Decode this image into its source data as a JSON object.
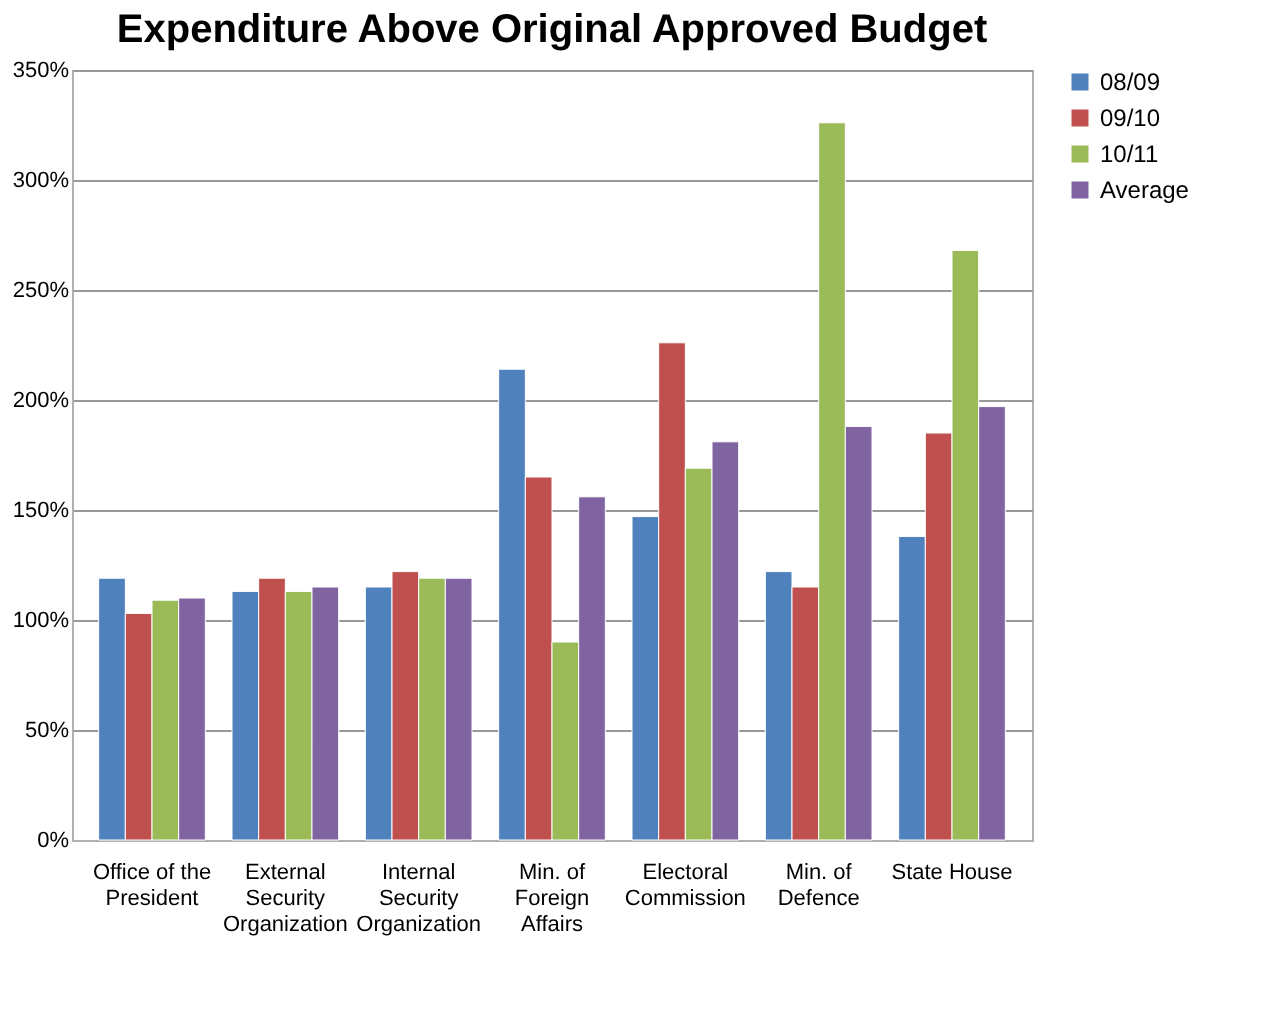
{
  "chart_data": {
    "type": "bar",
    "title": "Expenditure Above Original Approved Budget",
    "categories": [
      "Office of the President",
      "External Security Organization",
      "Internal Security Organization",
      "Min. of Foreign Affairs",
      "Electoral Commission",
      "Min. of Defence",
      "State House"
    ],
    "series": [
      {
        "name": "08/09",
        "color": "#4f81bd",
        "values": [
          119,
          113,
          115,
          214,
          147,
          122,
          138
        ]
      },
      {
        "name": "09/10",
        "color": "#c0504d",
        "values": [
          103,
          119,
          122,
          165,
          226,
          115,
          185
        ]
      },
      {
        "name": "10/11",
        "color": "#9bbb59",
        "values": [
          109,
          113,
          119,
          90,
          169,
          326,
          268
        ]
      },
      {
        "name": "Average",
        "color": "#8064a2",
        "values": [
          110,
          115,
          119,
          156,
          181,
          188,
          197
        ]
      }
    ],
    "ylim": [
      0,
      350
    ],
    "yticks": [
      {
        "value": 0,
        "label": "0%"
      },
      {
        "value": 50,
        "label": "50%"
      },
      {
        "value": 100,
        "label": "100%"
      },
      {
        "value": 150,
        "label": "150%"
      },
      {
        "value": 200,
        "label": "200%"
      },
      {
        "value": 250,
        "label": "250%"
      },
      {
        "value": 300,
        "label": "300%"
      },
      {
        "value": 350,
        "label": "350%"
      }
    ],
    "grid": "y",
    "legend": "right"
  }
}
